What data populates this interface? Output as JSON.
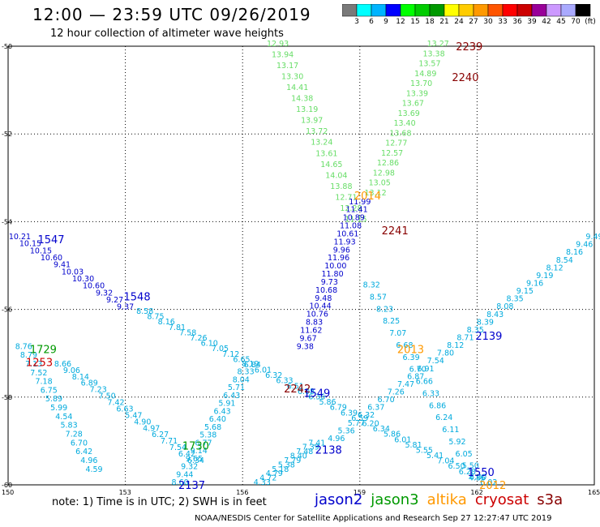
{
  "title": "12:00 — 23:59 UTC 09/26/2019",
  "subtitle": "12 hour collection of altimeter wave heights",
  "colorbar": {
    "colors": [
      "#7a7a7a",
      "#00ffff",
      "#00b4ff",
      "#0000ff",
      "#00ff00",
      "#00cc00",
      "#009900",
      "#ffff00",
      "#ffcc00",
      "#ff9900",
      "#ff5500",
      "#ff0000",
      "#cc0000",
      "#990099",
      "#cc99ff",
      "#aaaaff",
      "#000000"
    ],
    "labels": [
      "3",
      "6",
      "9",
      "12",
      "15",
      "18",
      "21",
      "24",
      "27",
      "30",
      "33",
      "36",
      "39",
      "42",
      "45",
      "70",
      "(ft)"
    ]
  },
  "axes": {
    "y_ticks": [
      "-50",
      "-52",
      "-54",
      "-56",
      "-58",
      "-60"
    ],
    "x_ticks": [
      "150",
      "153",
      "156",
      "159",
      "162",
      "165"
    ]
  },
  "note": "note:  1) Time is in UTC;  2) SWH is in feet",
  "legend": [
    {
      "label": "jason2",
      "color": "#0000cc"
    },
    {
      "label": "jason3",
      "color": "#009900"
    },
    {
      "label": "altika",
      "color": "#ff9900"
    },
    {
      "label": "cryosat",
      "color": "#cc0000"
    },
    {
      "label": "s3a",
      "color": "#880000"
    }
  ],
  "credit": "NOAA/NESDIS Center for Satellite Applications and Research    Sep 27 12:27:47 UTC 2019",
  "chart_data": {
    "type": "scatter",
    "xlim": [
      150,
      165
    ],
    "ylim": [
      -60,
      -50
    ],
    "grid": true,
    "pass_labels": [
      {
        "text": "2239",
        "lon": 161.8,
        "lat": -50.0,
        "color": "#880000"
      },
      {
        "text": "2240",
        "lon": 161.7,
        "lat": -50.7,
        "color": "#880000"
      },
      {
        "text": "2014",
        "lon": 159.2,
        "lat": -53.4,
        "color": "#ff9900"
      },
      {
        "text": "2241",
        "lon": 159.9,
        "lat": -54.2,
        "color": "#880000"
      },
      {
        "text": "1547",
        "lon": 151.1,
        "lat": -54.4,
        "color": "#0000cc"
      },
      {
        "text": "1548",
        "lon": 153.3,
        "lat": -55.7,
        "color": "#0000cc"
      },
      {
        "text": "2139",
        "lon": 162.3,
        "lat": -56.6,
        "color": "#0000cc"
      },
      {
        "text": "2013",
        "lon": 160.3,
        "lat": -56.9,
        "color": "#ff9900"
      },
      {
        "text": "1729",
        "lon": 150.9,
        "lat": -56.9,
        "color": "#009900"
      },
      {
        "text": "1253",
        "lon": 150.8,
        "lat": -57.2,
        "color": "#cc0000"
      },
      {
        "text": "2242",
        "lon": 157.4,
        "lat": -57.8,
        "color": "#880000"
      },
      {
        "text": "1549",
        "lon": 157.9,
        "lat": -57.9,
        "color": "#0000cc"
      },
      {
        "text": "1730",
        "lon": 154.8,
        "lat": -59.1,
        "color": "#009900"
      },
      {
        "text": "2138",
        "lon": 158.2,
        "lat": -59.2,
        "color": "#0000cc"
      },
      {
        "text": "1550",
        "lon": 162.1,
        "lat": -59.7,
        "color": "#0000cc"
      },
      {
        "text": "2012",
        "lon": 162.4,
        "lat": -60.0,
        "color": "#ff9900"
      },
      {
        "text": "2137",
        "lon": 154.7,
        "lat": -60.0,
        "color": "#0000cc"
      }
    ],
    "tracks": [
      {
        "name": "t2240",
        "color": "#66dd66",
        "values": [
          "13.27",
          "13.38",
          "13.57",
          "14.89",
          "13.70",
          "13.39",
          "13.67",
          "13.69",
          "13.40",
          "13.68",
          "12.77",
          "12.57",
          "12.86",
          "12.98",
          "13.05",
          "13.12"
        ],
        "start": [
          161.0,
          -50.0
        ],
        "end": [
          159.4,
          -53.4
        ]
      },
      {
        "name": "t2241up",
        "color": "#66dd66",
        "values": [
          "12.93",
          "13.94",
          "13.17",
          "13.30",
          "14.41",
          "14.38",
          "13.19",
          "13.97",
          "13.72",
          "13.24",
          "13.61",
          "14.65",
          "14.04",
          "13.88",
          "12.71",
          "12.28",
          "11.15"
        ],
        "start": [
          156.9,
          -50.0
        ],
        "end": [
          158.9,
          -54.0
        ]
      },
      {
        "name": "t2241dn",
        "color": "#0000cc",
        "values": [
          "11.99",
          "11.41",
          "10.89",
          "11.08",
          "10.61",
          "11.93",
          "9.96",
          "11.96",
          "10.00",
          "11.80",
          "9.73",
          "10.68",
          "9.48",
          "10.44",
          "10.76",
          "8.83",
          "11.62",
          "9.67",
          "9.38"
        ],
        "start": [
          159.0,
          -53.6
        ],
        "end": [
          157.6,
          -56.9
        ]
      },
      {
        "name": "t1547",
        "color": "#0000cc",
        "values": [
          "10.21",
          "10.15",
          "10.15",
          "10.60",
          "9.41",
          "10.03",
          "10.30",
          "10.60",
          "9.32",
          "9.27",
          "9.37"
        ],
        "start": [
          150.3,
          -54.4
        ],
        "end": [
          153.0,
          -56.0
        ]
      },
      {
        "name": "t1548",
        "color": "#00aadd",
        "values": [
          "8.58",
          "8.75",
          "8.16",
          "7.81",
          "7.58",
          "7.26",
          "6.10",
          "7.05",
          "7.12",
          "6.65",
          "6.84",
          "6.01",
          "6.32",
          "6.33",
          "6.51",
          "6.08",
          "6.36",
          "5.86",
          "6.79",
          "6.39",
          "6.59",
          "6.20",
          "6.34",
          "5.86",
          "6.01",
          "5.81",
          "5.55",
          "5.41",
          "7.04",
          "6.50",
          "6.28",
          "6.00",
          "6.02"
        ],
        "start": [
          153.5,
          -56.1
        ],
        "end": [
          162.3,
          -60.0
        ]
      },
      {
        "name": "t2139",
        "color": "#00aadd",
        "values": [
          "9.49",
          "9.46",
          "8.16",
          "8.54",
          "8.12",
          "9.19",
          "9.16",
          "9.15",
          "8.35",
          "8.08",
          "8.43",
          "8.39",
          "8.35",
          "8.71",
          "8.12",
          "7.80",
          "7.54",
          "6.91",
          "6.87",
          "7.47",
          "7.26",
          "6.70",
          "6.37",
          "6.32",
          "5.77",
          "5.36",
          "4.96"
        ],
        "start": [
          165.0,
          -54.4
        ],
        "end": [
          158.4,
          -59.0
        ]
      },
      {
        "name": "t2139b",
        "color": "#00aadd",
        "values": [
          "7.41",
          "7.39",
          "7.48",
          "8.40",
          "7.79",
          "5.38",
          "5.18",
          "4.79",
          "4.72",
          "4.33"
        ],
        "start": [
          157.9,
          -59.1
        ],
        "end": [
          156.5,
          -60.0
        ]
      },
      {
        "name": "t2013",
        "color": "#00aadd",
        "values": [
          "8.32",
          "8.57",
          "8.23",
          "8.25",
          "7.07",
          "6.68",
          "6.39",
          "6.70",
          "6.66",
          "6.33",
          "6.86",
          "6.24",
          "6.11",
          "5.92",
          "6.05",
          "5.50",
          "4.86"
        ],
        "start": [
          159.3,
          -55.5
        ],
        "end": [
          162.0,
          -59.9
        ]
      },
      {
        "name": "t1729",
        "color": "#00aadd",
        "values": [
          "8.76",
          "8.79",
          "7.13",
          "7.52",
          "7.18",
          "6.75",
          "5.89",
          "5.99",
          "4.54",
          "5.83",
          "7.28",
          "6.70",
          "6.42",
          "4.96",
          "4.59"
        ],
        "start": [
          150.4,
          -56.9
        ],
        "end": [
          152.2,
          -59.7
        ]
      },
      {
        "name": "t1253",
        "color": "#00aadd",
        "values": [
          "8.66",
          "9.06",
          "8.14",
          "6.89",
          "7.23",
          "7.50",
          "7.42",
          "6.63",
          "5.47",
          "4.90",
          "4.97",
          "6.27",
          "7.71",
          "7.54",
          "6.42",
          "6.34"
        ],
        "start": [
          151.4,
          -57.3
        ],
        "end": [
          154.8,
          -59.5
        ]
      },
      {
        "name": "t1730",
        "color": "#00aadd",
        "values": [
          "8.19",
          "8.33",
          "8.04",
          "5.71",
          "6.43",
          "5.91",
          "6.43",
          "6.40",
          "5.68",
          "5.38",
          "6.77",
          "9.14",
          "9.65",
          "9.32",
          "9.44",
          "8.60"
        ],
        "start": [
          156.2,
          -57.3
        ],
        "end": [
          154.4,
          -60.0
        ]
      }
    ]
  }
}
